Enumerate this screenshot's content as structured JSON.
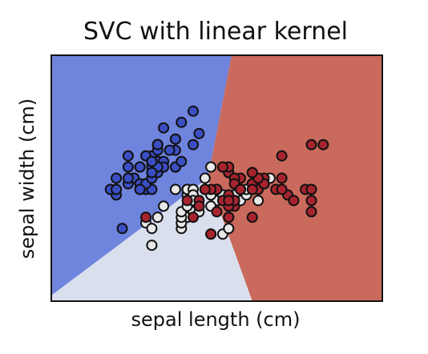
{
  "chart_data": {
    "type": "scatter",
    "title": "SVC with linear kernel",
    "xlabel": "sepal length (cm)",
    "ylabel": "sepal width (cm)",
    "xlim": [
      3.3,
      8.9
    ],
    "ylim": [
      1.0,
      5.4
    ],
    "xticks": [],
    "yticks": [],
    "grid": false,
    "legend": "none",
    "region_colors": [
      "#6f84dd",
      "#dadfee",
      "#c96a5c"
    ],
    "point_colors": [
      "#3a4fc4",
      "#e8e8e8",
      "#a7242e"
    ],
    "point_edge_color": "#111111",
    "series": [
      {
        "class_index": 0,
        "points": [
          [
            5.1,
            3.5
          ],
          [
            4.9,
            3.0
          ],
          [
            4.7,
            3.2
          ],
          [
            4.6,
            3.1
          ],
          [
            5.0,
            3.6
          ],
          [
            5.4,
            3.9
          ],
          [
            4.6,
            3.4
          ],
          [
            5.0,
            3.4
          ],
          [
            4.4,
            2.9
          ],
          [
            4.9,
            3.1
          ],
          [
            5.4,
            3.7
          ],
          [
            4.8,
            3.4
          ],
          [
            4.8,
            3.0
          ],
          [
            4.3,
            3.0
          ],
          [
            5.8,
            4.0
          ],
          [
            5.7,
            4.4
          ],
          [
            5.4,
            3.9
          ],
          [
            5.1,
            3.5
          ],
          [
            5.7,
            3.8
          ],
          [
            5.1,
            3.8
          ],
          [
            5.4,
            3.4
          ],
          [
            5.1,
            3.7
          ],
          [
            4.6,
            3.6
          ],
          [
            5.1,
            3.3
          ],
          [
            4.8,
            3.4
          ],
          [
            5.0,
            3.0
          ],
          [
            5.0,
            3.4
          ],
          [
            5.2,
            3.5
          ],
          [
            5.2,
            3.4
          ],
          [
            4.7,
            3.2
          ],
          [
            4.8,
            3.1
          ],
          [
            5.4,
            3.4
          ],
          [
            5.2,
            4.1
          ],
          [
            5.5,
            4.2
          ],
          [
            4.9,
            3.1
          ],
          [
            5.0,
            3.2
          ],
          [
            5.5,
            3.5
          ],
          [
            4.9,
            3.6
          ],
          [
            4.4,
            3.0
          ],
          [
            5.1,
            3.4
          ],
          [
            5.0,
            3.5
          ],
          [
            4.5,
            2.3
          ],
          [
            4.4,
            3.2
          ],
          [
            5.0,
            3.5
          ],
          [
            5.1,
            3.8
          ],
          [
            4.8,
            3.0
          ],
          [
            5.1,
            3.8
          ],
          [
            4.6,
            3.2
          ],
          [
            5.3,
            3.7
          ],
          [
            5.0,
            3.3
          ]
        ]
      },
      {
        "class_index": 1,
        "points": [
          [
            7.0,
            3.2
          ],
          [
            6.4,
            3.2
          ],
          [
            6.9,
            3.1
          ],
          [
            5.5,
            2.3
          ],
          [
            6.5,
            2.8
          ],
          [
            5.7,
            2.8
          ],
          [
            6.3,
            3.3
          ],
          [
            4.9,
            2.4
          ],
          [
            6.6,
            2.9
          ],
          [
            5.2,
            2.7
          ],
          [
            5.0,
            2.0
          ],
          [
            5.9,
            3.0
          ],
          [
            6.0,
            2.2
          ],
          [
            6.1,
            2.9
          ],
          [
            5.6,
            2.9
          ],
          [
            6.7,
            3.1
          ],
          [
            5.6,
            3.0
          ],
          [
            5.8,
            2.7
          ],
          [
            6.2,
            2.2
          ],
          [
            5.6,
            2.5
          ],
          [
            5.9,
            3.2
          ],
          [
            6.1,
            2.8
          ],
          [
            6.3,
            2.5
          ],
          [
            6.1,
            2.8
          ],
          [
            6.4,
            2.9
          ],
          [
            6.6,
            3.0
          ],
          [
            6.8,
            2.8
          ],
          [
            6.7,
            3.0
          ],
          [
            6.0,
            2.9
          ],
          [
            5.7,
            2.6
          ],
          [
            5.5,
            2.4
          ],
          [
            5.5,
            2.4
          ],
          [
            5.8,
            2.7
          ],
          [
            6.0,
            2.7
          ],
          [
            5.4,
            3.0
          ],
          [
            6.0,
            3.4
          ],
          [
            6.7,
            3.1
          ],
          [
            6.3,
            2.3
          ],
          [
            5.6,
            3.0
          ],
          [
            5.5,
            2.5
          ],
          [
            5.5,
            2.6
          ],
          [
            6.1,
            3.0
          ],
          [
            5.8,
            2.6
          ],
          [
            5.0,
            2.3
          ],
          [
            5.6,
            2.7
          ],
          [
            5.7,
            3.0
          ],
          [
            5.7,
            2.9
          ],
          [
            6.2,
            2.9
          ],
          [
            5.1,
            2.5
          ],
          [
            5.7,
            2.8
          ]
        ]
      },
      {
        "class_index": 2,
        "points": [
          [
            6.3,
            3.3
          ],
          [
            5.8,
            2.7
          ],
          [
            7.1,
            3.0
          ],
          [
            6.3,
            2.9
          ],
          [
            6.5,
            3.0
          ],
          [
            7.6,
            3.0
          ],
          [
            4.9,
            2.5
          ],
          [
            7.3,
            2.9
          ],
          [
            6.7,
            2.5
          ],
          [
            7.2,
            3.6
          ],
          [
            6.5,
            3.2
          ],
          [
            6.4,
            2.7
          ],
          [
            6.8,
            3.0
          ],
          [
            5.7,
            2.5
          ],
          [
            5.8,
            2.8
          ],
          [
            6.4,
            3.2
          ],
          [
            6.5,
            3.0
          ],
          [
            7.7,
            3.8
          ],
          [
            7.7,
            2.6
          ],
          [
            6.0,
            2.2
          ],
          [
            6.9,
            3.2
          ],
          [
            5.6,
            2.8
          ],
          [
            7.7,
            2.8
          ],
          [
            6.3,
            2.7
          ],
          [
            6.7,
            3.3
          ],
          [
            7.2,
            3.2
          ],
          [
            6.2,
            2.8
          ],
          [
            6.1,
            3.0
          ],
          [
            6.4,
            2.8
          ],
          [
            7.2,
            3.0
          ],
          [
            7.4,
            2.8
          ],
          [
            7.9,
            3.8
          ],
          [
            6.4,
            2.8
          ],
          [
            6.3,
            2.8
          ],
          [
            6.1,
            2.6
          ],
          [
            7.7,
            3.0
          ],
          [
            6.3,
            3.4
          ],
          [
            6.4,
            3.1
          ],
          [
            6.0,
            3.0
          ],
          [
            6.9,
            3.1
          ],
          [
            6.7,
            3.1
          ],
          [
            6.9,
            3.1
          ],
          [
            5.8,
            2.7
          ],
          [
            6.8,
            3.2
          ],
          [
            6.7,
            3.3
          ],
          [
            6.7,
            3.0
          ],
          [
            6.3,
            2.5
          ],
          [
            6.5,
            3.0
          ],
          [
            6.2,
            3.4
          ],
          [
            5.9,
            3.0
          ]
        ]
      }
    ]
  }
}
